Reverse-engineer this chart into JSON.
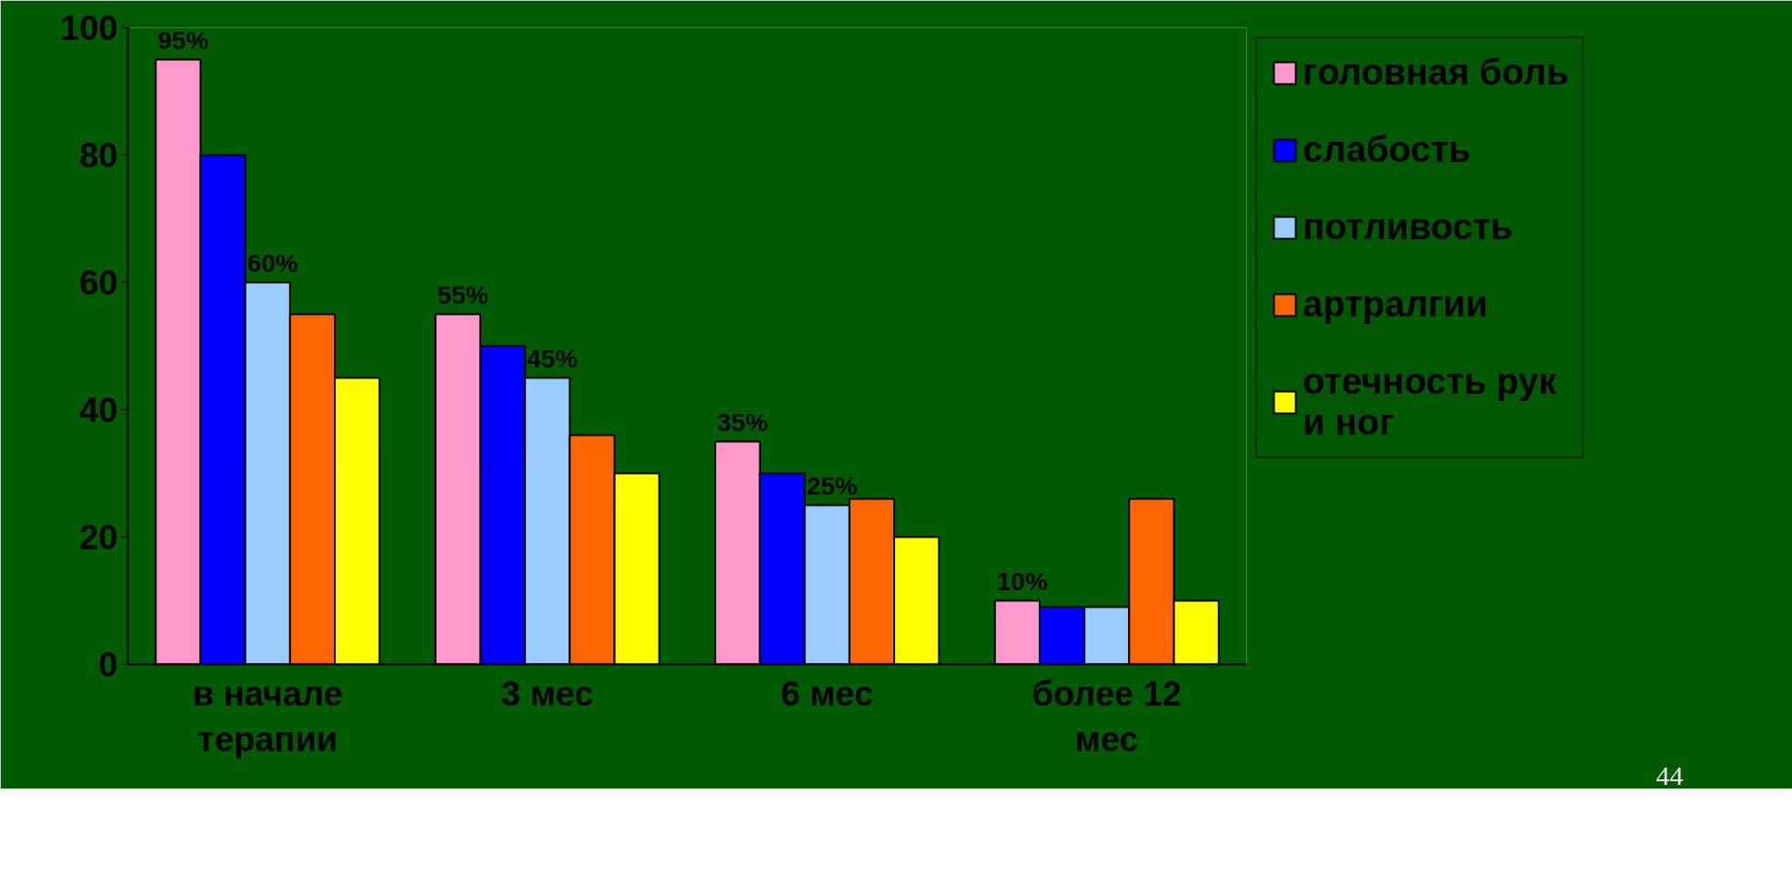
{
  "chart_data": {
    "type": "bar",
    "categories": [
      "в начале\nтерапии",
      "3 мес",
      "6 мес",
      "более 12\nмес"
    ],
    "series": [
      {
        "name": "головная боль",
        "color": "#ff99cc",
        "values": [
          95,
          55,
          35,
          10
        ],
        "value_labels": [
          "95%",
          "55%",
          "35%",
          "10%"
        ]
      },
      {
        "name": "слабость",
        "color": "#0000ff",
        "values": [
          80,
          50,
          30,
          9
        ]
      },
      {
        "name": "потливость",
        "color": "#99ccff",
        "values": [
          60,
          45,
          25,
          9
        ],
        "value_labels": [
          "60%",
          "45%",
          "25%",
          null
        ]
      },
      {
        "name": "артралгии",
        "color": "#ff6600",
        "values": [
          55,
          36,
          26,
          26
        ]
      },
      {
        "name": "отечность рук\nи ног",
        "color": "#ffff00",
        "values": [
          45,
          30,
          20,
          10
        ]
      }
    ],
    "ylim": [
      0,
      100
    ],
    "yticks": [
      0,
      20,
      40,
      60,
      80,
      100
    ],
    "grid": false,
    "legend": "right",
    "annotations": [
      "44"
    ]
  }
}
